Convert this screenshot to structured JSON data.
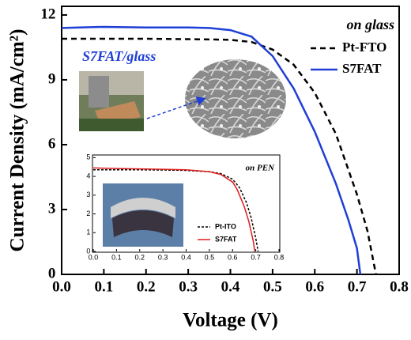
{
  "chart_data": [
    {
      "type": "line",
      "x_label": "Voltage (V)",
      "y_label": "Current Density (mA/cm²)",
      "legend_title": "on glass",
      "annotation": "S7FAT/glass",
      "annotation_color": "#1f3fd6",
      "xlim": [
        0,
        0.8
      ],
      "xticks": [
        {
          "value": 0,
          "label": "0.0"
        },
        0.1,
        0.2,
        0.3,
        0.4,
        0.5,
        0.6,
        0.7,
        0.8
      ],
      "ylim": [
        0,
        12.4
      ],
      "yticks": [
        0,
        3,
        6,
        9,
        12
      ],
      "legend": "upper right",
      "series": [
        {
          "name": "Pt-FTO",
          "color": "#000000",
          "line_style": "dashed",
          "x": [
            0,
            0.1,
            0.2,
            0.3,
            0.35,
            0.4,
            0.45,
            0.5,
            0.55,
            0.6,
            0.65,
            0.7,
            0.725,
            0.745
          ],
          "values": [
            10.9,
            10.9,
            10.9,
            10.88,
            10.87,
            10.85,
            10.75,
            10.4,
            9.7,
            8.4,
            6.5,
            3.7,
            2.0,
            0
          ]
        },
        {
          "name": "S7FAT",
          "color": "#1f3fd6",
          "line_style": "solid",
          "x": [
            0,
            0.1,
            0.2,
            0.3,
            0.35,
            0.4,
            0.45,
            0.5,
            0.55,
            0.6,
            0.65,
            0.68,
            0.7,
            0.708
          ],
          "values": [
            11.4,
            11.45,
            11.42,
            11.42,
            11.4,
            11.3,
            11.0,
            10.1,
            8.6,
            6.6,
            4.2,
            2.5,
            1.2,
            0
          ]
        }
      ]
    },
    {
      "type": "line",
      "legend_title": "on PEN",
      "xlim": [
        0,
        0.8
      ],
      "xticks": [
        {
          "value": 0,
          "label": "0.0"
        },
        0.1,
        0.2,
        0.3,
        0.4,
        0.5,
        0.6,
        0.7,
        0.8
      ],
      "ylim": [
        0,
        5.1
      ],
      "yticks": [
        0,
        1,
        2,
        3,
        4,
        5
      ],
      "legend": "lower right",
      "series": [
        {
          "name": "Pt-ITO",
          "color": "#000000",
          "line_style": "dashed",
          "x": [
            0,
            0.1,
            0.2,
            0.3,
            0.4,
            0.5,
            0.55,
            0.6,
            0.63,
            0.66,
            0.68,
            0.7,
            0.71
          ],
          "values": [
            4.35,
            4.35,
            4.35,
            4.34,
            4.32,
            4.25,
            4.15,
            3.85,
            3.4,
            2.6,
            1.8,
            0.7,
            0
          ]
        },
        {
          "name": "S7FAT",
          "color": "#e01b1b",
          "line_style": "solid",
          "x": [
            0,
            0.1,
            0.2,
            0.3,
            0.4,
            0.5,
            0.55,
            0.6,
            0.62,
            0.65,
            0.67,
            0.69,
            0.695
          ],
          "values": [
            4.45,
            4.42,
            4.4,
            4.38,
            4.35,
            4.25,
            4.1,
            3.7,
            3.3,
            2.4,
            1.6,
            0.5,
            0
          ]
        }
      ]
    }
  ]
}
